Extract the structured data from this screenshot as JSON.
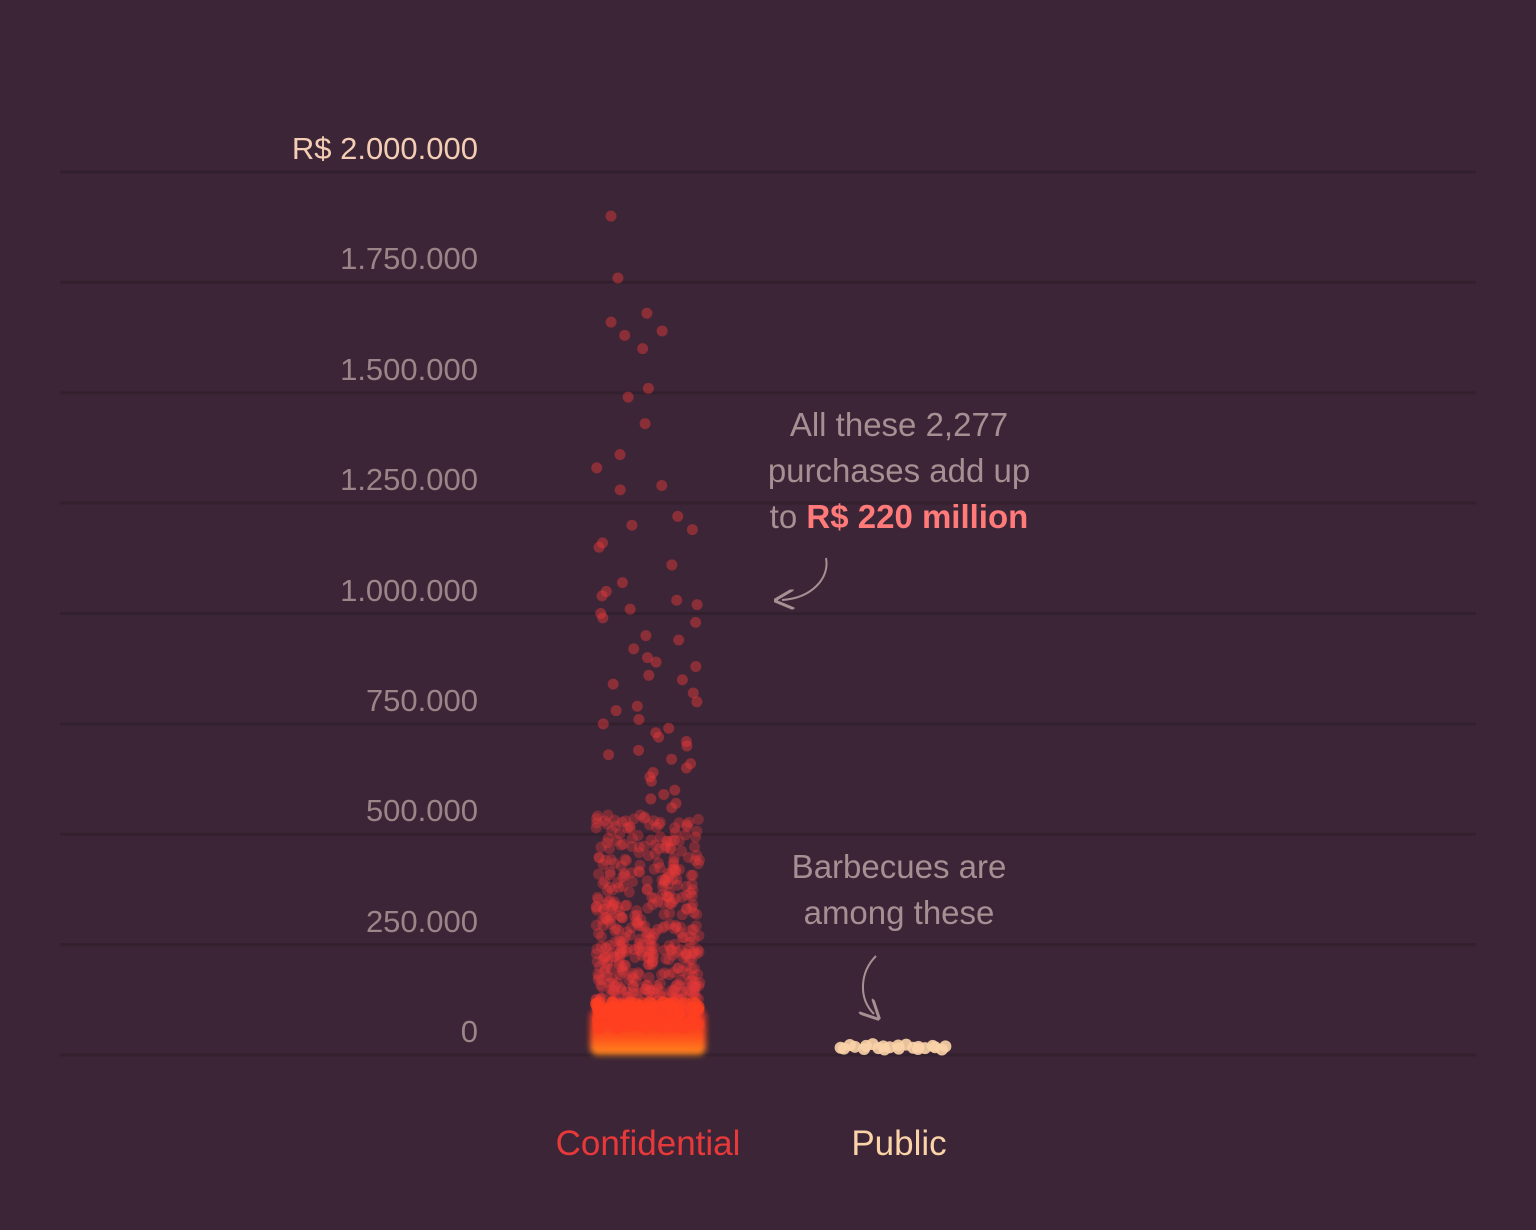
{
  "chart_data": {
    "type": "scatter",
    "ylim": [
      0,
      2000000
    ],
    "y_ticks": [
      {
        "value": 2000000,
        "label": "R$ 2.000.000"
      },
      {
        "value": 1750000,
        "label": "1.750.000"
      },
      {
        "value": 1500000,
        "label": "1.500.000"
      },
      {
        "value": 1250000,
        "label": "1.250.000"
      },
      {
        "value": 1000000,
        "label": "1.000.000"
      },
      {
        "value": 750000,
        "label": "750.000"
      },
      {
        "value": 500000,
        "label": "500.000"
      },
      {
        "value": 250000,
        "label": "250.000"
      },
      {
        "value": 0,
        "label": "0"
      }
    ],
    "categories": [
      "Confidential",
      "Public"
    ],
    "colors": {
      "background": "#3c2536",
      "confidential": "#e8393a",
      "confidential_dense": "#ff6a1a",
      "public": "#fbd3a8",
      "annotation_text": "#a79093",
      "highlight": "#ff7a78",
      "top_tick": "#f3ceb4",
      "tick": "#9c8588"
    },
    "series": [
      {
        "category": "Confidential",
        "count": 2277,
        "total": "R$ 220 million",
        "outlier_values": [
          1900000,
          1760000,
          1680000,
          1660000,
          1640000,
          1630000,
          1600000,
          1510000,
          1490000,
          1430000,
          1360000,
          1330000,
          1290000,
          1280000,
          1220000,
          1200000,
          1190000,
          1160000,
          1150000,
          1110000,
          1070000,
          1050000,
          1040000,
          1030000,
          1020000,
          1010000,
          1000000,
          990000,
          980000,
          950000,
          940000,
          920000,
          900000,
          890000,
          880000,
          860000,
          850000,
          840000,
          820000,
          800000,
          790000,
          780000,
          760000,
          750000,
          740000,
          730000,
          720000,
          710000,
          700000,
          690000,
          680000,
          670000,
          660000,
          650000,
          640000,
          630000,
          620000,
          600000,
          590000,
          580000,
          570000,
          560000
        ]
      },
      {
        "category": "Public",
        "values": [
          12000,
          10000,
          18000,
          14000,
          9000,
          16000,
          20000,
          11000,
          15000,
          8000,
          13000,
          17000,
          10000,
          19000,
          12000,
          9000,
          14000,
          11000,
          16000,
          13000,
          8000,
          15000
        ]
      }
    ],
    "annotations": [
      {
        "lines": [
          "All these 2,277",
          "purchases add up",
          "to "
        ],
        "highlight": "R$ 220 million"
      },
      {
        "lines": [
          "Barbecues are",
          "among these"
        ]
      }
    ]
  }
}
